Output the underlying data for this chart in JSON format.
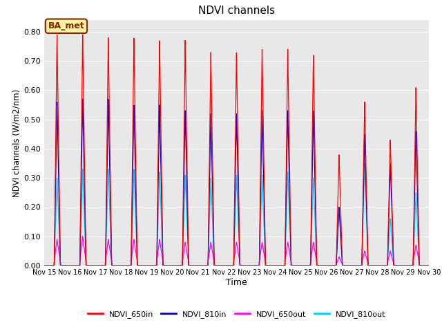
{
  "title": "NDVI channels",
  "xlabel": "Time",
  "ylabel": "NDVI channels (W/m2/nm)",
  "ylim": [
    0.0,
    0.84
  ],
  "background_color": "#e8e8e8",
  "annotation_text": "BA_met",
  "annotation_bg": "#f5f5a0",
  "annotation_edge": "#8b2500",
  "legend_labels": [
    "NDVI_650in",
    "NDVI_810in",
    "NDVI_650out",
    "NDVI_810out"
  ],
  "line_colors": [
    "#ff0000",
    "#0000cc",
    "#ff00ff",
    "#00ccff"
  ],
  "peak_days": [
    15,
    16,
    17,
    18,
    19,
    20,
    21,
    22,
    23,
    24,
    25,
    26,
    27,
    28,
    29
  ],
  "peak_650in": [
    0.79,
    0.79,
    0.78,
    0.78,
    0.77,
    0.77,
    0.73,
    0.73,
    0.74,
    0.74,
    0.72,
    0.38,
    0.56,
    0.43,
    0.61
  ],
  "peak_810in": [
    0.56,
    0.57,
    0.57,
    0.55,
    0.55,
    0.53,
    0.52,
    0.52,
    0.53,
    0.53,
    0.53,
    0.2,
    0.45,
    0.35,
    0.46
  ],
  "peak_650out": [
    0.09,
    0.1,
    0.09,
    0.09,
    0.09,
    0.08,
    0.08,
    0.08,
    0.08,
    0.08,
    0.08,
    0.03,
    0.05,
    0.05,
    0.07
  ],
  "peak_810out": [
    0.3,
    0.33,
    0.33,
    0.33,
    0.32,
    0.31,
    0.3,
    0.31,
    0.31,
    0.32,
    0.3,
    0.2,
    0.35,
    0.16,
    0.25
  ],
  "xstart": 15,
  "xend": 30,
  "xtick_positions": [
    15,
    16,
    17,
    18,
    19,
    20,
    21,
    22,
    23,
    24,
    25,
    26,
    27,
    28,
    29,
    30
  ],
  "xtick_labels": [
    "Nov 15",
    "Nov 16",
    "Nov 17",
    "Nov 18",
    "Nov 19",
    "Nov 20",
    "Nov 21",
    "Nov 22",
    "Nov 23",
    "Nov 24",
    "Nov 25",
    "Nov 26",
    "Nov 27",
    "Nov 28",
    "Nov 29",
    "Nov 30"
  ]
}
